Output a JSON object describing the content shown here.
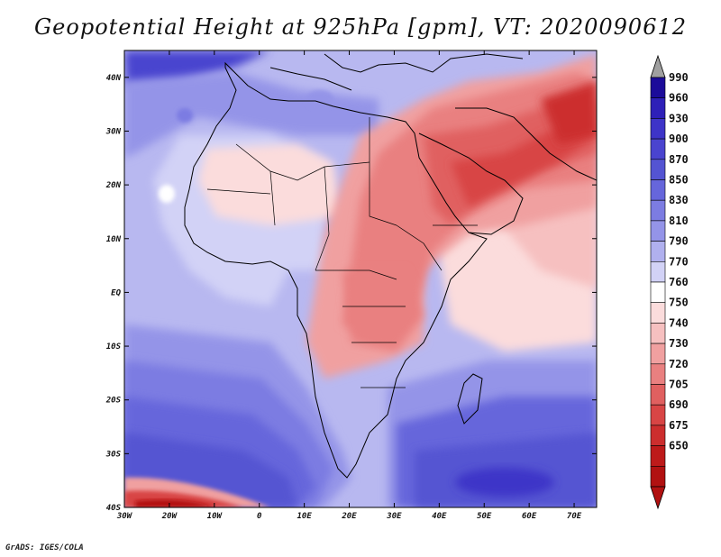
{
  "title": "Geopotential Height at 925hPa [gpm], VT: 2020090612",
  "credit": "GrADS: IGES/COLA",
  "map": {
    "region": "Africa, Arabia and western Indian Ocean",
    "variable": "Geopotential Height at 925hPa",
    "units": "gpm",
    "valid_time": "2020090612",
    "lon_range": [
      -30,
      75
    ],
    "lat_range": [
      -40,
      45
    ],
    "x_ticks": [
      "30W",
      "20W",
      "10W",
      "0",
      "10E",
      "20E",
      "30E",
      "40E",
      "50E",
      "60E",
      "70E"
    ],
    "y_ticks": [
      "40N",
      "30N",
      "20N",
      "10N",
      "EQ",
      "10S",
      "20S",
      "30S",
      "40S"
    ]
  },
  "colorbar": {
    "levels": [
      "990",
      "960",
      "930",
      "900",
      "870",
      "850",
      "830",
      "810",
      "790",
      "770",
      "760",
      "750",
      "740",
      "730",
      "720",
      "705",
      "690",
      "675",
      "650"
    ],
    "colors": [
      "#1c0c9a",
      "#2e20b8",
      "#3e34c8",
      "#4a44cf",
      "#5454d2",
      "#6666db",
      "#7c7ce2",
      "#9494e8",
      "#b0b0ee",
      "#d2d2f6",
      "#ffffff",
      "#fbdcdc",
      "#f6c0c0",
      "#f0a0a0",
      "#e98080",
      "#e06060",
      "#d84545",
      "#cc2e2e",
      "#bd1a1a",
      "#b11111"
    ],
    "top_arrow_color": "#a0a0a0",
    "bottom_arrow_color": "#b11111"
  }
}
